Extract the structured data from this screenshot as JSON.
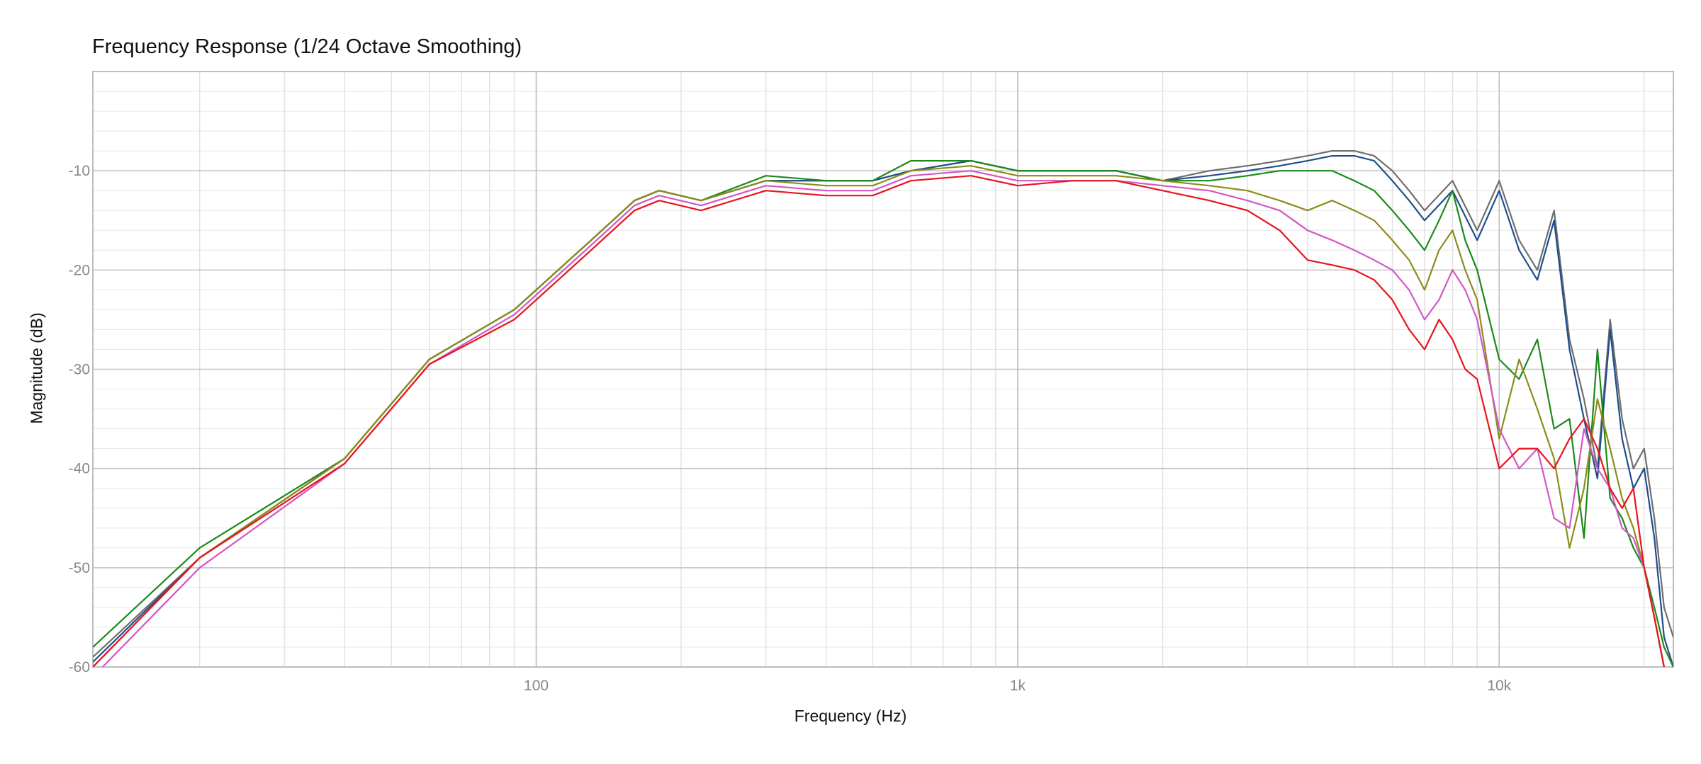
{
  "chart_data": {
    "type": "line",
    "title": "Frequency Response",
    "subtitle": "(1/24 Octave Smoothing)",
    "xlabel": "Frequency (Hz)",
    "ylabel": "Magnitude (dB)",
    "xscale": "log",
    "xlim": [
      12,
      23000
    ],
    "ylim": [
      -60,
      0
    ],
    "xticks": [
      100,
      1000,
      10000
    ],
    "xtick_labels": [
      "100",
      "1k",
      "10k"
    ],
    "yticks": [
      -10,
      -20,
      -30,
      -40,
      -50,
      -60
    ],
    "ytick_labels": [
      "-10",
      "-20",
      "-30",
      "-40",
      "-50",
      "-60"
    ],
    "grid": true,
    "legend": "none",
    "series": [
      {
        "color": "#6e6e6e",
        "x": [
          12,
          20,
          40,
          60,
          90,
          100,
          130,
          160,
          180,
          220,
          300,
          400,
          500,
          600,
          800,
          1000,
          1300,
          1600,
          2000,
          2500,
          3000,
          3500,
          4000,
          4500,
          5000,
          5500,
          6000,
          6500,
          7000,
          8000,
          9000,
          10000,
          11000,
          12000,
          13000,
          14000,
          15000,
          16000,
          17000,
          18000,
          19000,
          20000,
          21000,
          22000,
          23000
        ],
        "y": [
          -59,
          -49,
          -39,
          -29,
          -24,
          -22,
          -17,
          -13,
          -12,
          -13,
          -11,
          -11,
          -11,
          -10,
          -9,
          -10,
          -10,
          -10,
          -11,
          -10,
          -9.5,
          -9,
          -8.5,
          -8,
          -8,
          -8.5,
          -10,
          -12,
          -14,
          -11,
          -16,
          -11,
          -17,
          -20,
          -14,
          -27,
          -33,
          -40,
          -25,
          -35,
          -40,
          -38,
          -45,
          -54,
          -57
        ]
      },
      {
        "color": "#1f4e8c",
        "x": [
          12,
          20,
          40,
          60,
          90,
          100,
          130,
          160,
          180,
          220,
          300,
          400,
          500,
          600,
          800,
          1000,
          1300,
          1600,
          2000,
          2500,
          3000,
          3500,
          4000,
          4500,
          5000,
          5500,
          6000,
          6500,
          7000,
          8000,
          9000,
          10000,
          11000,
          12000,
          13000,
          14000,
          15000,
          16000,
          17000,
          18000,
          19000,
          20000,
          21000,
          22000,
          23000
        ],
        "y": [
          -59.5,
          -49,
          -39,
          -29,
          -24,
          -22,
          -17,
          -13,
          -12,
          -13,
          -11,
          -11,
          -11,
          -10,
          -9,
          -10,
          -10,
          -10,
          -11,
          -10.5,
          -10,
          -9.5,
          -9,
          -8.5,
          -8.5,
          -9,
          -11,
          -13,
          -15,
          -12,
          -17,
          -12,
          -18,
          -21,
          -15,
          -28,
          -35,
          -41,
          -26,
          -37,
          -42,
          -40,
          -47,
          -57,
          -60
        ]
      },
      {
        "color": "#1a8a1a",
        "x": [
          12,
          20,
          40,
          60,
          90,
          100,
          130,
          160,
          180,
          220,
          300,
          400,
          500,
          600,
          800,
          1000,
          1300,
          1600,
          2000,
          2500,
          3000,
          3500,
          4000,
          4500,
          5000,
          5500,
          6000,
          6500,
          7000,
          7500,
          8000,
          8500,
          9000,
          10000,
          11000,
          12000,
          13000,
          14000,
          15000,
          16000,
          17000,
          18000,
          19000,
          20000,
          21000,
          22000,
          23000
        ],
        "y": [
          -58,
          -48,
          -39,
          -29,
          -24,
          -22,
          -17,
          -13,
          -12,
          -13,
          -10.5,
          -11,
          -11,
          -9,
          -9,
          -10,
          -10,
          -10,
          -11,
          -11,
          -10.5,
          -10,
          -10,
          -10,
          -11,
          -12,
          -14,
          -16,
          -18,
          -15,
          -12,
          -17,
          -20,
          -29,
          -31,
          -27,
          -36,
          -35,
          -47,
          -28,
          -43,
          -45,
          -48,
          -50,
          -54,
          -58,
          -60
        ]
      },
      {
        "color": "#8c8c1a",
        "x": [
          12,
          20,
          40,
          60,
          90,
          100,
          130,
          160,
          180,
          220,
          300,
          400,
          500,
          600,
          800,
          1000,
          1300,
          1600,
          2000,
          2500,
          3000,
          3500,
          4000,
          4500,
          5000,
          5500,
          6000,
          6500,
          7000,
          7500,
          8000,
          8500,
          9000,
          10000,
          11000,
          12000,
          13000,
          14000,
          15000,
          16000,
          17000,
          18000,
          19000,
          20000,
          21000,
          22000
        ],
        "y": [
          -60,
          -49,
          -39,
          -29,
          -24,
          -22,
          -17,
          -13,
          -12,
          -13,
          -11,
          -11.5,
          -11.5,
          -10,
          -9.5,
          -10.5,
          -10.5,
          -10.5,
          -11,
          -11.5,
          -12,
          -13,
          -14,
          -13,
          -14,
          -15,
          -17,
          -19,
          -22,
          -18,
          -16,
          -20,
          -23,
          -37,
          -29,
          -34,
          -39,
          -48,
          -42,
          -33,
          -38,
          -43,
          -46,
          -50,
          -55,
          -60
        ]
      },
      {
        "color": "#d257c4",
        "x": [
          12,
          20,
          40,
          60,
          90,
          100,
          130,
          160,
          180,
          220,
          300,
          400,
          500,
          600,
          800,
          1000,
          1300,
          1600,
          2000,
          2500,
          3000,
          3500,
          4000,
          4500,
          5000,
          5500,
          6000,
          6500,
          7000,
          7500,
          8000,
          8500,
          9000,
          10000,
          11000,
          12000,
          13000,
          14000,
          15000,
          16000,
          17000,
          18000,
          19000,
          20000,
          21000,
          22000
        ],
        "y": [
          -61,
          -50,
          -39.5,
          -29.5,
          -24.5,
          -22.5,
          -17.5,
          -13.5,
          -12.5,
          -13.5,
          -11.5,
          -12,
          -12,
          -10.5,
          -10,
          -11,
          -11,
          -11,
          -11.5,
          -12,
          -13,
          -14,
          -16,
          -17,
          -18,
          -19,
          -20,
          -22,
          -25,
          -23,
          -20,
          -22,
          -25,
          -36,
          -40,
          -38,
          -45,
          -46,
          -36,
          -40,
          -42,
          -46,
          -47,
          -50,
          -55,
          -60
        ]
      },
      {
        "color": "#e8141e",
        "x": [
          12,
          20,
          40,
          60,
          90,
          100,
          130,
          160,
          180,
          220,
          300,
          400,
          500,
          600,
          800,
          1000,
          1300,
          1600,
          2000,
          2500,
          3000,
          3500,
          4000,
          4500,
          5000,
          5500,
          6000,
          6500,
          7000,
          7500,
          8000,
          8500,
          9000,
          10000,
          11000,
          12000,
          13000,
          14000,
          15000,
          16000,
          17000,
          18000,
          19000,
          20000,
          21000,
          22000
        ],
        "y": [
          -60,
          -49,
          -39.5,
          -29.5,
          -25,
          -23,
          -18,
          -14,
          -13,
          -14,
          -12,
          -12.5,
          -12.5,
          -11,
          -10.5,
          -11.5,
          -11,
          -11,
          -12,
          -13,
          -14,
          -16,
          -19,
          -19.5,
          -20,
          -21,
          -23,
          -26,
          -28,
          -25,
          -27,
          -30,
          -31,
          -40,
          -38,
          -38,
          -40,
          -37,
          -35,
          -38,
          -42,
          -44,
          -42,
          -50,
          -55,
          -60
        ]
      }
    ]
  }
}
